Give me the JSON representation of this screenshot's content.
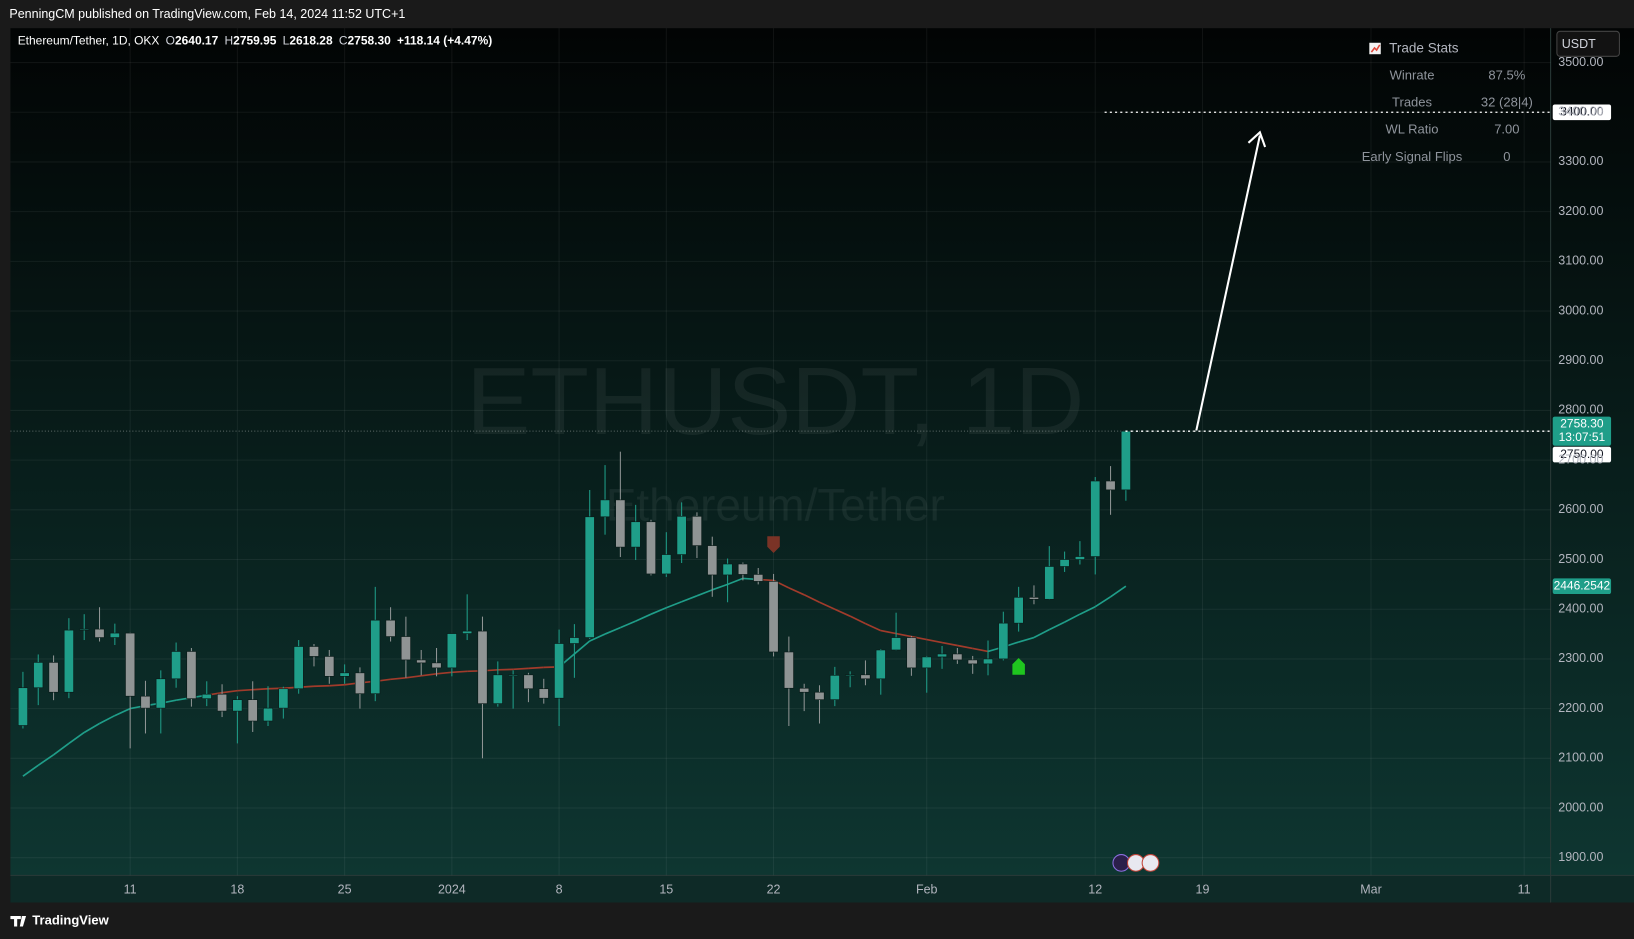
{
  "header": {
    "text": "PenningCM published on TradingView.com, Feb 14, 2024 11:52 UTC+1"
  },
  "legend": {
    "symbol": "Ethereum/Tether, 1D, OKX",
    "fields": [
      {
        "key": "O",
        "value": "2640.17"
      },
      {
        "key": "H",
        "value": "2759.95"
      },
      {
        "key": "L",
        "value": "2618.28"
      },
      {
        "key": "C",
        "value": "2758.30"
      }
    ],
    "change": "+118.14 (+4.47%)"
  },
  "watermark": {
    "symbol": "ETHUSDT, 1D",
    "description": "Ethereum/Tether"
  },
  "currency_button": "USDT",
  "trade_stats": {
    "title": "Trade Stats",
    "rows": [
      [
        "Winrate",
        "87.5%"
      ],
      [
        "Trades",
        "32 (28|4)"
      ],
      [
        "WL Ratio",
        "7.00"
      ],
      [
        "Early Signal Flips",
        "0"
      ]
    ]
  },
  "footer": "TradingView",
  "chart_data": {
    "type": "candlestick",
    "categories": [
      null,
      null,
      null,
      null,
      null,
      null,
      null,
      "11",
      null,
      null,
      null,
      null,
      null,
      null,
      "18",
      null,
      null,
      null,
      null,
      null,
      null,
      "25",
      null,
      null,
      null,
      null,
      null,
      null,
      "2024",
      null,
      null,
      null,
      null,
      null,
      null,
      "8",
      null,
      null,
      null,
      null,
      null,
      null,
      "15",
      null,
      null,
      null,
      null,
      null,
      null,
      "22",
      null,
      null,
      null,
      null,
      null,
      null,
      null,
      null,
      null,
      "Feb",
      null,
      null,
      null,
      null,
      null,
      null,
      null,
      null,
      null,
      null,
      "12",
      null,
      null,
      null,
      null,
      null,
      null,
      "19",
      null,
      null,
      null,
      null,
      null,
      null,
      null,
      null,
      null,
      null,
      "Mar",
      null,
      null,
      null,
      null,
      null,
      null,
      null,
      null,
      null,
      "11",
      null
    ],
    "open": [
      2166,
      2242,
      2293,
      2233,
      2358,
      2360,
      2343,
      2352,
      2225,
      2201,
      2260,
      2315,
      2220,
      2229,
      2195,
      2218,
      2175,
      2201,
      2240,
      2325,
      2305,
      2265,
      2272,
      2230,
      2378,
      2345,
      2298,
      2292,
      2282,
      2351,
      2356,
      2210,
      2268,
      2268,
      2240,
      2221,
      2331,
      2343,
      2586,
      2620,
      2525,
      2576,
      2471,
      2510,
      2587,
      2528,
      2469,
      2491,
      2470,
      2456,
      2314,
      2241,
      2233,
      2218,
      2267,
      2268,
      2260,
      2318,
      2343,
      2282,
      2304,
      2310,
      2298,
      2290,
      2300,
      2372,
      2424,
      2420,
      2486,
      2500,
      2506,
      2658,
      2640.17,
      null,
      null,
      null,
      null,
      null,
      null,
      null,
      null,
      null,
      null,
      null,
      null,
      null,
      null,
      null,
      null,
      null,
      null,
      null,
      null,
      null,
      null,
      null,
      null,
      null,
      null,
      null
    ],
    "high": [
      2274,
      2309,
      2307,
      2382,
      2390,
      2404,
      2371,
      2353,
      2256,
      2277,
      2333,
      2322,
      2255,
      2249,
      2225,
      2255,
      2245,
      2244,
      2338,
      2330,
      2318,
      2289,
      2283,
      2445,
      2404,
      2385,
      2318,
      2322,
      2351,
      2430,
      2385,
      2295,
      2277,
      2272,
      2260,
      2359,
      2370,
      2640,
      2690,
      2717,
      2610,
      2580,
      2555,
      2615,
      2595,
      2546,
      2502,
      2494,
      2483,
      2471,
      2345,
      2250,
      2247,
      2284,
      2275,
      2297,
      2320,
      2393,
      2346,
      2306,
      2326,
      2322,
      2306,
      2337,
      2395,
      2445,
      2448,
      2527,
      2516,
      2537,
      2666,
      2688,
      2759.95,
      null,
      null,
      null,
      null,
      null,
      null,
      null,
      null,
      null,
      null,
      null,
      null,
      null,
      null,
      null,
      null,
      null,
      null,
      null,
      null,
      null,
      null,
      null,
      null,
      null,
      null,
      null
    ],
    "low": [
      2160,
      2207,
      2217,
      2221,
      2338,
      2335,
      2328,
      2120,
      2150,
      2150,
      2242,
      2204,
      2205,
      2183,
      2130,
      2153,
      2165,
      2180,
      2230,
      2285,
      2250,
      2250,
      2200,
      2215,
      2335,
      2262,
      2267,
      2265,
      2265,
      2338,
      2100,
      2204,
      2200,
      2213,
      2210,
      2165,
      2262,
      2340,
      2550,
      2505,
      2499,
      2468,
      2465,
      2493,
      2503,
      2425,
      2414,
      2458,
      2450,
      2305,
      2165,
      2195,
      2170,
      2205,
      2243,
      2247,
      2228,
      2317,
      2266,
      2232,
      2280,
      2290,
      2270,
      2267,
      2297,
      2355,
      2410,
      2419,
      2475,
      2490,
      2470,
      2590,
      2618.28,
      null,
      null,
      null,
      null,
      null,
      null,
      null,
      null,
      null,
      null,
      null,
      null,
      null,
      null,
      null,
      null,
      null,
      null,
      null,
      null,
      null,
      null,
      null,
      null,
      null,
      null,
      null
    ],
    "close": [
      2242,
      2293,
      2233,
      2358,
      2360,
      2343,
      2352,
      2225,
      2201,
      2260,
      2315,
      2220,
      2229,
      2195,
      2218,
      2175,
      2201,
      2240,
      2325,
      2305,
      2265,
      2272,
      2230,
      2378,
      2345,
      2298,
      2292,
      2282,
      2351,
      2356,
      2210,
      2268,
      2268,
      2240,
      2221,
      2331,
      2343,
      2586,
      2620,
      2525,
      2576,
      2471,
      2510,
      2587,
      2528,
      2469,
      2491,
      2470,
      2456,
      2314,
      2241,
      2233,
      2218,
      2267,
      2268,
      2260,
      2318,
      2343,
      2282,
      2304,
      2310,
      2298,
      2290,
      2300,
      2372,
      2424,
      2420,
      2486,
      2500,
      2506,
      2658,
      2640.17,
      2758.3,
      null,
      null,
      null,
      null,
      null,
      null,
      null,
      null,
      null,
      null,
      null,
      null,
      null,
      null,
      null,
      null,
      null,
      null,
      null,
      null,
      null,
      null,
      null,
      null,
      null,
      null,
      null
    ],
    "ma": {
      "values": [
        2064,
        2086,
        2107,
        2130,
        2152,
        2170,
        2186,
        2200,
        2206,
        2211,
        2217,
        2222,
        2227,
        2232,
        2236,
        2238,
        2240,
        2241,
        2243,
        2245,
        2246,
        2248,
        2252,
        2255,
        2259,
        2262,
        2266,
        2270,
        2273,
        2275,
        2276,
        2278,
        2279,
        2281,
        2283,
        2284,
        2310,
        2336,
        2350,
        2363,
        2376,
        2390,
        2403,
        2415,
        2427,
        2439,
        2450,
        2462,
        2460,
        2458,
        2443,
        2429,
        2414,
        2400,
        2386,
        2371,
        2357,
        2351,
        2345,
        2339,
        2333,
        2327,
        2321,
        2315,
        2324,
        2334,
        2343,
        2359,
        2374,
        2390,
        2405,
        2425,
        2446.2542,
        null,
        null,
        null,
        null,
        null,
        null,
        null,
        null,
        null,
        null,
        null,
        null,
        null,
        null,
        null,
        null,
        null,
        null,
        null,
        null,
        null,
        null,
        null,
        null,
        null,
        null,
        null
      ],
      "colors": [
        "#1f9e89",
        "#1f9e89",
        "#1f9e89",
        "#1f9e89",
        "#1f9e89",
        "#1f9e89",
        "#1f9e89",
        "#1f9e89",
        "#1f9e89",
        "#1f9e89",
        "#1f9e89",
        "#1f9e89",
        "#1f9e89",
        "#a13b2b",
        "#a13b2b",
        "#a13b2b",
        "#a13b2b",
        "#a13b2b",
        "#a13b2b",
        "#a13b2b",
        "#a13b2b",
        "#a13b2b",
        "#a13b2b",
        "#a13b2b",
        "#a13b2b",
        "#a13b2b",
        "#a13b2b",
        "#a13b2b",
        "#a13b2b",
        "#a13b2b",
        "#a13b2b",
        "#a13b2b",
        "#a13b2b",
        "#a13b2b",
        "#a13b2b",
        "#a13b2b",
        "#1f9e89",
        "#1f9e89",
        "#1f9e89",
        "#1f9e89",
        "#1f9e89",
        "#1f9e89",
        "#1f9e89",
        "#1f9e89",
        "#1f9e89",
        "#1f9e89",
        "#1f9e89",
        "#1f9e89",
        "#1f9e89",
        "#a13b2b",
        "#a13b2b",
        "#a13b2b",
        "#a13b2b",
        "#a13b2b",
        "#a13b2b",
        "#a13b2b",
        "#a13b2b",
        "#a13b2b",
        "#a13b2b",
        "#a13b2b",
        "#a13b2b",
        "#a13b2b",
        "#a13b2b",
        "#a13b2b",
        "#1f9e89",
        "#1f9e89",
        "#1f9e89",
        "#1f9e89",
        "#1f9e89",
        "#1f9e89",
        "#1f9e89",
        "#1f9e89",
        "#1f9e89",
        null,
        null,
        null,
        null,
        null,
        null,
        null,
        null,
        null,
        null,
        null,
        null,
        null,
        null,
        null,
        null,
        null,
        null,
        null,
        null,
        null,
        null,
        null,
        null,
        null,
        null,
        null
      ]
    },
    "up_color": "#1f9e89",
    "down_color": "#8f9494",
    "ylim": [
      1864.4,
      3569.2
    ],
    "yticks": [
      {
        "value": 1900,
        "label": "1900.00"
      },
      {
        "value": 2000,
        "label": "2000.00"
      },
      {
        "value": 2100,
        "label": "2100.00"
      },
      {
        "value": 2200,
        "label": "2200.00"
      },
      {
        "value": 2300,
        "label": "2300.00"
      },
      {
        "value": 2400,
        "label": "2400.00"
      },
      {
        "value": 2500,
        "label": "2500.00"
      },
      {
        "value": 2600,
        "label": "2600.00"
      },
      {
        "value": 2700,
        "label": "2700.00"
      },
      {
        "value": 2800,
        "label": "2800.00"
      },
      {
        "value": 2900,
        "label": "2900.00"
      },
      {
        "value": 3000,
        "label": "3000.00"
      },
      {
        "value": 3100,
        "label": "3100.00"
      },
      {
        "value": 3200,
        "label": "3200.00"
      },
      {
        "value": 3300,
        "label": "3300.00"
      },
      {
        "value": 3400,
        "label": "3400.00"
      },
      {
        "value": 3500,
        "label": "3500.00"
      }
    ],
    "grid": true,
    "price_labels": [
      {
        "value": 3400,
        "label": "3400.00",
        "color": "#ffffff"
      },
      {
        "value": 2758.3,
        "label": "2758.30",
        "sublabel": "13:07:51",
        "color": "#1f9e89"
      },
      {
        "value": 2750,
        "label": "2750.00",
        "color": "#ffffff"
      },
      {
        "value": 2446.2542,
        "label": "2446.2542",
        "color": "#1f9e89"
      }
    ],
    "signals": [
      {
        "side": "sell",
        "at": 49,
        "price": 2530,
        "color": "#7a3326"
      },
      {
        "side": "buy",
        "at": 65,
        "price": 2285,
        "color": "#1fc51f"
      }
    ]
  }
}
